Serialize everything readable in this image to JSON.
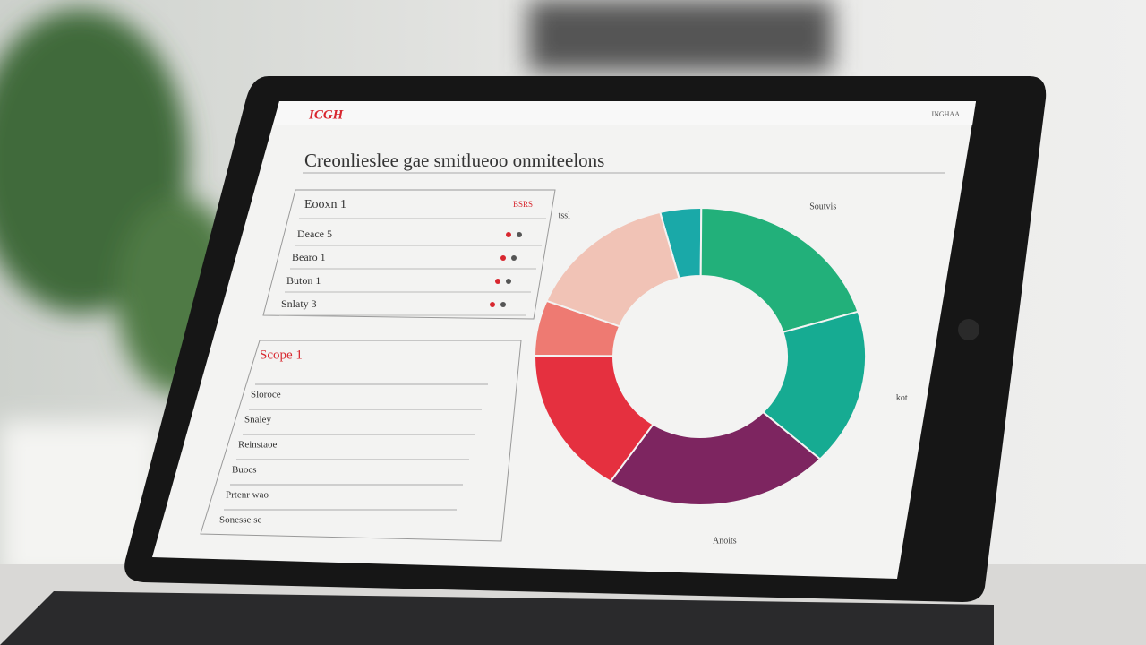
{
  "screen": {
    "header": {
      "logo": "ICGH",
      "right": "INGHAA"
    },
    "title": "Creonlieslee gae smitlueoo onmiteelons",
    "panel1": {
      "heading": "Eooxn 1",
      "heading_right": "BSRS",
      "rows": [
        "Deace 5",
        "Bearo 1",
        "Buton 1",
        "Snlaty 3"
      ]
    },
    "panel2": {
      "heading": "Scope 1",
      "rows": [
        "Sloroce",
        "Snaley",
        "Reinstaoe",
        "Buocs",
        "Prtenr wao",
        "Sonesse se"
      ]
    }
  },
  "chart_data": {
    "type": "pie",
    "categories": [
      null,
      "Soutvis",
      "kot",
      "Anoits",
      null,
      null,
      "tssl"
    ],
    "values": [
      4,
      20,
      17,
      22,
      16,
      6,
      15
    ],
    "colors": [
      "#1aa9a8",
      "#22b07a",
      "#16ab92",
      "#7d2560",
      "#e5303f",
      "#ee7a72",
      "#f1c3b6"
    ],
    "donut": true
  }
}
